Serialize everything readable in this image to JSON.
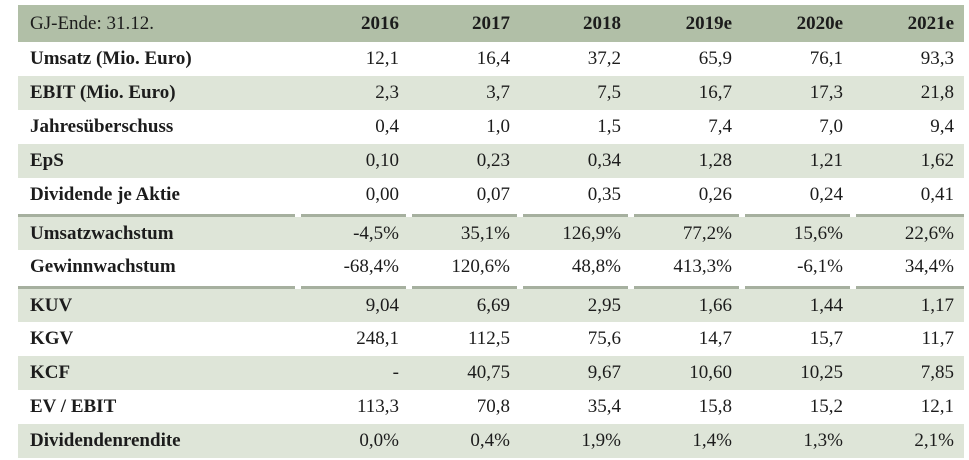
{
  "table": {
    "header": {
      "label": "GJ-Ende: 31.12.",
      "years": [
        "2016",
        "2017",
        "2018",
        "2019e",
        "2020e",
        "2021e"
      ]
    },
    "rows": [
      {
        "label": "Umsatz (Mio. Euro)",
        "values": [
          "12,1",
          "16,4",
          "37,2",
          "65,9",
          "76,1",
          "93,3"
        ],
        "shaded": false,
        "separator_above": false
      },
      {
        "label": "EBIT (Mio. Euro)",
        "values": [
          "2,3",
          "3,7",
          "7,5",
          "16,7",
          "17,3",
          "21,8"
        ],
        "shaded": true,
        "separator_above": false
      },
      {
        "label": "Jahresüberschuss",
        "values": [
          "0,4",
          "1,0",
          "1,5",
          "7,4",
          "7,0",
          "9,4"
        ],
        "shaded": false,
        "separator_above": false
      },
      {
        "label": "EpS",
        "values": [
          "0,10",
          "0,23",
          "0,34",
          "1,28",
          "1,21",
          "1,62"
        ],
        "shaded": true,
        "separator_above": false
      },
      {
        "label": "Dividende je Aktie",
        "values": [
          "0,00",
          "0,07",
          "0,35",
          "0,26",
          "0,24",
          "0,41"
        ],
        "shaded": false,
        "separator_above": false
      },
      {
        "label": "Umsatzwachstum",
        "values": [
          "-4,5%",
          "35,1%",
          "126,9%",
          "77,2%",
          "15,6%",
          "22,6%"
        ],
        "shaded": true,
        "separator_above": true
      },
      {
        "label": "Gewinnwachstum",
        "values": [
          "-68,4%",
          "120,6%",
          "48,8%",
          "413,3%",
          "-6,1%",
          "34,4%"
        ],
        "shaded": false,
        "separator_above": false
      },
      {
        "label": "KUV",
        "values": [
          "9,04",
          "6,69",
          "2,95",
          "1,66",
          "1,44",
          "1,17"
        ],
        "shaded": true,
        "separator_above": true
      },
      {
        "label": "KGV",
        "values": [
          "248,1",
          "112,5",
          "75,6",
          "14,7",
          "15,7",
          "11,7"
        ],
        "shaded": false,
        "separator_above": false
      },
      {
        "label": "KCF",
        "values": [
          "-",
          "40,75",
          "9,67",
          "10,60",
          "10,25",
          "7,85"
        ],
        "shaded": true,
        "separator_above": false
      },
      {
        "label": "EV / EBIT",
        "values": [
          "113,3",
          "70,8",
          "35,4",
          "15,8",
          "15,2",
          "12,1"
        ],
        "shaded": false,
        "separator_above": false
      },
      {
        "label": "Dividendenrendite",
        "values": [
          "0,0%",
          "0,4%",
          "1,9%",
          "1,4%",
          "1,3%",
          "2,1%"
        ],
        "shaded": true,
        "separator_above": false
      }
    ]
  },
  "colors": {
    "header_bg": "#b1bfa7",
    "shaded_row_bg": "#dee5d8",
    "separator_line": "#a6b09f",
    "text": "#1c1c1c"
  }
}
